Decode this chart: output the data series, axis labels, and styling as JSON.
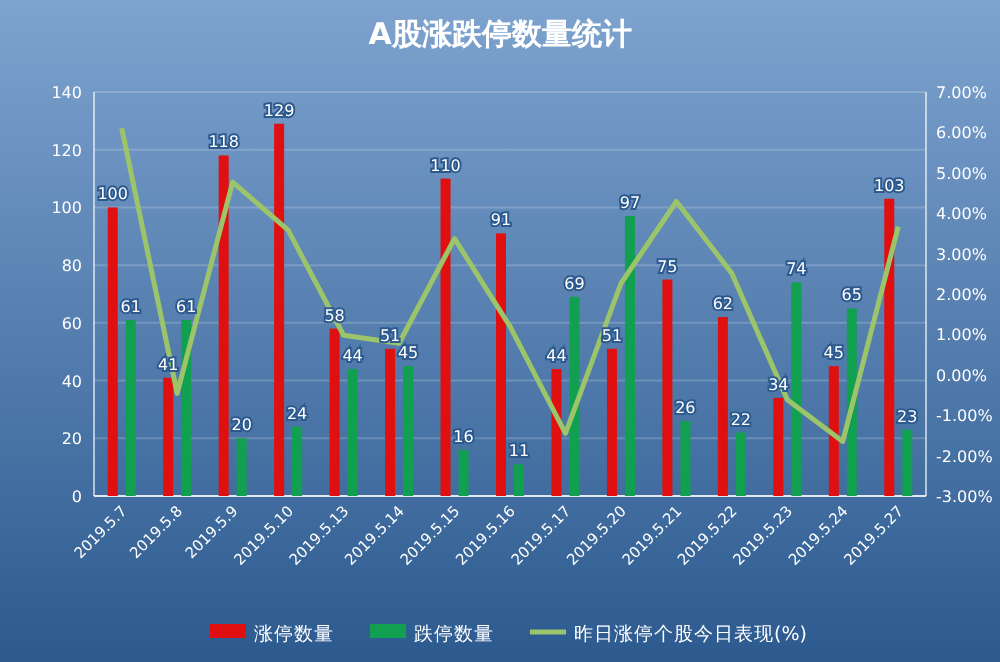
{
  "chart_data": {
    "type": "bar",
    "title": "A股涨跌停数量统计",
    "categories": [
      "2019.5.7",
      "2019.5.8",
      "2019.5.9",
      "2019.5.10",
      "2019.5.13",
      "2019.5.14",
      "2019.5.15",
      "2019.5.16",
      "2019.5.17",
      "2019.5.20",
      "2019.5.21",
      "2019.5.22",
      "2019.5.23",
      "2019.5.24",
      "2019.5.27"
    ],
    "series": [
      {
        "name": "涨停数量",
        "color": "#e01010",
        "values": [
          100,
          41,
          118,
          129,
          58,
          51,
          110,
          91,
          44,
          51,
          75,
          62,
          34,
          45,
          103
        ],
        "value_labels": [
          "100",
          "41",
          "118",
          "129",
          "58",
          "51",
          "110",
          "91",
          "44",
          "51",
          "75",
          "62",
          "34",
          "45",
          "103"
        ]
      },
      {
        "name": "跌停数量",
        "color": "#10a050",
        "values": [
          61,
          61,
          20,
          24,
          44,
          45,
          16,
          11,
          69,
          97,
          26,
          22,
          74,
          65,
          23
        ],
        "value_labels": [
          "61",
          "61",
          "20",
          "24",
          "44",
          "45",
          "16",
          "11",
          "69",
          "97",
          "26",
          "22",
          "74",
          "65",
          "23"
        ]
      },
      {
        "name": "昨日涨停个股今日表现(%)",
        "type": "line",
        "axis": "y2",
        "color": "#9cc46a",
        "values": [
          6.1,
          -0.46,
          4.77,
          3.58,
          0.98,
          0.78,
          3.37,
          1.2,
          -1.45,
          2.26,
          4.29,
          2.51,
          -0.62,
          -1.65,
          3.67
        ]
      }
    ],
    "ylim": [
      0,
      140
    ],
    "yticks": [
      0,
      20,
      40,
      60,
      80,
      100,
      120,
      140
    ],
    "y2lim": [
      -3,
      7
    ],
    "y2ticks": [
      {
        "value": -3,
        "label": "-3.00%"
      },
      {
        "value": -2,
        "label": "-2.00%"
      },
      {
        "value": -1,
        "label": "-1.00%"
      },
      {
        "value": 0,
        "label": "0.00%"
      },
      {
        "value": 1,
        "label": "1.00%"
      },
      {
        "value": 2,
        "label": "2.00%"
      },
      {
        "value": 3,
        "label": "3.00%"
      },
      {
        "value": 4,
        "label": "4.00%"
      },
      {
        "value": 5,
        "label": "5.00%"
      },
      {
        "value": 6,
        "label": "6.00%"
      },
      {
        "value": 7,
        "label": "7.00%"
      }
    ],
    "grid": "y",
    "legend": "bottom",
    "marker": "none",
    "line_style": "solid"
  }
}
